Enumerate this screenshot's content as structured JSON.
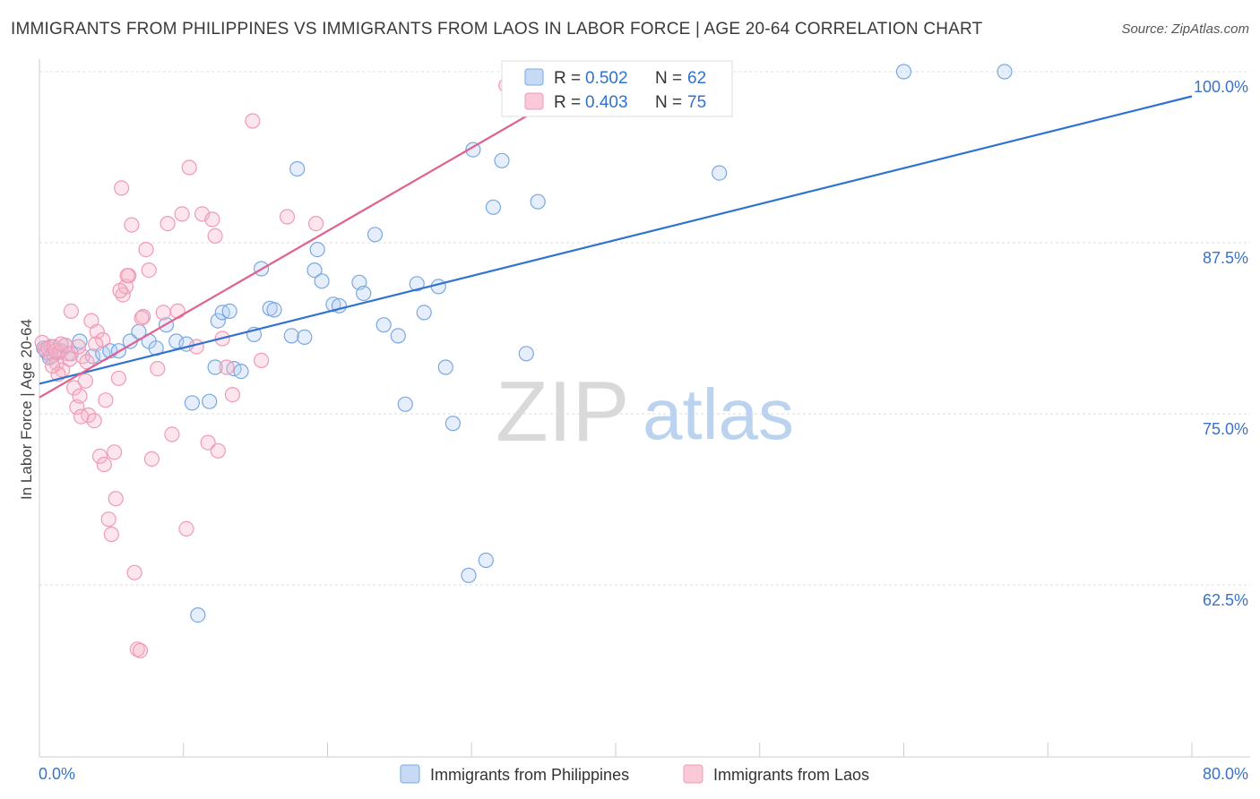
{
  "chart_data": {
    "type": "scatter",
    "title": "IMMIGRANTS FROM PHILIPPINES VS IMMIGRANTS FROM LAOS IN LABOR FORCE | AGE 20-64 CORRELATION CHART",
    "source": "Source: ZipAtlas.com",
    "ylabel": "In Labor Force | Age 20-64",
    "xlabel": "",
    "xlim": [
      0,
      80
    ],
    "ylim": [
      50,
      101.5
    ],
    "x_tick_labels": {
      "min": "0.0%",
      "max": "80.0%"
    },
    "y_ticks": [
      {
        "value": 100,
        "label": "100.0%"
      },
      {
        "value": 87.5,
        "label": "87.5%"
      },
      {
        "value": 75,
        "label": "75.0%"
      },
      {
        "value": 62.5,
        "label": "62.5%"
      }
    ],
    "grid": true,
    "legend_position": "bottom",
    "watermark": {
      "part1": "ZIP",
      "part2": "atlas"
    },
    "stats_box": [
      {
        "r_label": "R = ",
        "r_value": "0.502",
        "n_label": "N = ",
        "n_value": "62"
      },
      {
        "r_label": "R = ",
        "r_value": "0.403",
        "n_label": "N = ",
        "n_value": "75"
      }
    ],
    "series": [
      {
        "name": "Immigrants from Philippines",
        "color": "#7aa8e0",
        "line_color": "#2f72d0",
        "trend": {
          "x0": 0,
          "y0": 77.2,
          "x1": 80,
          "y1": 98.2
        },
        "points": [
          [
            0.3,
            79.8
          ],
          [
            0.5,
            79.5
          ],
          [
            0.8,
            79.9
          ],
          [
            1.0,
            79.3
          ],
          [
            1.5,
            79.6
          ],
          [
            1.8,
            80.0
          ],
          [
            2.2,
            79.4
          ],
          [
            2.8,
            80.3
          ],
          [
            3.7,
            79.2
          ],
          [
            4.4,
            79.4
          ],
          [
            4.9,
            79.6
          ],
          [
            5.5,
            79.6
          ],
          [
            6.3,
            80.3
          ],
          [
            6.9,
            81.0
          ],
          [
            7.6,
            80.3
          ],
          [
            8.1,
            79.8
          ],
          [
            8.8,
            81.5
          ],
          [
            9.5,
            80.3
          ],
          [
            10.2,
            80.1
          ],
          [
            10.6,
            75.8
          ],
          [
            11.0,
            60.3
          ],
          [
            11.8,
            75.9
          ],
          [
            12.2,
            78.4
          ],
          [
            12.4,
            81.8
          ],
          [
            12.7,
            82.4
          ],
          [
            13.2,
            82.5
          ],
          [
            13.5,
            78.3
          ],
          [
            14.0,
            78.1
          ],
          [
            14.9,
            80.8
          ],
          [
            15.4,
            85.6
          ],
          [
            16.0,
            82.7
          ],
          [
            16.3,
            82.6
          ],
          [
            17.5,
            80.7
          ],
          [
            17.9,
            92.9
          ],
          [
            18.4,
            80.6
          ],
          [
            19.1,
            85.5
          ],
          [
            19.3,
            87.0
          ],
          [
            19.6,
            84.7
          ],
          [
            20.4,
            83.0
          ],
          [
            20.8,
            82.9
          ],
          [
            22.2,
            84.6
          ],
          [
            22.5,
            83.8
          ],
          [
            23.3,
            88.1
          ],
          [
            23.9,
            81.5
          ],
          [
            24.9,
            80.7
          ],
          [
            25.4,
            75.7
          ],
          [
            26.2,
            84.5
          ],
          [
            26.7,
            82.4
          ],
          [
            27.7,
            84.3
          ],
          [
            28.2,
            78.4
          ],
          [
            28.7,
            74.3
          ],
          [
            29.8,
            63.2
          ],
          [
            30.1,
            94.3
          ],
          [
            31.0,
            64.3
          ],
          [
            31.5,
            90.1
          ],
          [
            32.1,
            93.5
          ],
          [
            33.8,
            79.4
          ],
          [
            34.6,
            90.5
          ],
          [
            47.2,
            92.6
          ],
          [
            60.0,
            100.0
          ],
          [
            67.0,
            100.0
          ],
          [
            0.7,
            79.1
          ]
        ]
      },
      {
        "name": "Immigrants from Laos",
        "color": "#f09ab5",
        "line_color": "#e0608f",
        "trend": {
          "x0": 0,
          "y0": 76.2,
          "x1": 38,
          "y1": 99.3
        },
        "points": [
          [
            0.2,
            80.2
          ],
          [
            0.4,
            79.7
          ],
          [
            0.6,
            79.8
          ],
          [
            0.8,
            79.2
          ],
          [
            1.0,
            79.9
          ],
          [
            1.2,
            78.7
          ],
          [
            1.4,
            79.5
          ],
          [
            1.6,
            78.2
          ],
          [
            1.8,
            80.0
          ],
          [
            2.0,
            79.4
          ],
          [
            2.2,
            82.5
          ],
          [
            2.4,
            76.9
          ],
          [
            2.6,
            75.5
          ],
          [
            2.8,
            76.3
          ],
          [
            3.0,
            79.2
          ],
          [
            3.2,
            77.4
          ],
          [
            3.4,
            74.9
          ],
          [
            3.6,
            81.8
          ],
          [
            3.8,
            74.5
          ],
          [
            4.0,
            81.0
          ],
          [
            4.2,
            71.9
          ],
          [
            4.4,
            80.4
          ],
          [
            4.6,
            76.0
          ],
          [
            4.8,
            67.3
          ],
          [
            5.0,
            66.2
          ],
          [
            5.2,
            72.2
          ],
          [
            5.3,
            68.8
          ],
          [
            5.5,
            77.6
          ],
          [
            5.7,
            91.5
          ],
          [
            5.8,
            83.7
          ],
          [
            6.0,
            84.3
          ],
          [
            6.2,
            85.1
          ],
          [
            6.4,
            88.8
          ],
          [
            6.6,
            63.4
          ],
          [
            6.8,
            57.8
          ],
          [
            7.0,
            57.7
          ],
          [
            7.2,
            82.1
          ],
          [
            7.4,
            87.0
          ],
          [
            7.6,
            85.5
          ],
          [
            7.8,
            71.7
          ],
          [
            8.2,
            78.3
          ],
          [
            8.6,
            82.4
          ],
          [
            8.9,
            88.9
          ],
          [
            9.2,
            73.5
          ],
          [
            9.6,
            82.5
          ],
          [
            9.9,
            89.6
          ],
          [
            10.2,
            66.6
          ],
          [
            10.4,
            93.0
          ],
          [
            10.9,
            79.9
          ],
          [
            11.3,
            89.6
          ],
          [
            11.7,
            72.9
          ],
          [
            12.0,
            89.2
          ],
          [
            12.2,
            88.0
          ],
          [
            12.4,
            72.3
          ],
          [
            12.7,
            80.5
          ],
          [
            13.0,
            78.4
          ],
          [
            13.4,
            76.4
          ],
          [
            14.8,
            96.4
          ],
          [
            15.4,
            78.9
          ],
          [
            17.2,
            89.4
          ],
          [
            19.2,
            88.9
          ],
          [
            32.4,
            99.0
          ],
          [
            1.1,
            79.6
          ],
          [
            1.5,
            80.1
          ],
          [
            2.1,
            79.0
          ],
          [
            2.7,
            79.9
          ],
          [
            3.3,
            78.8
          ],
          [
            4.5,
            71.3
          ],
          [
            5.6,
            84.0
          ],
          [
            6.1,
            85.1
          ],
          [
            7.1,
            82.0
          ],
          [
            2.9,
            74.8
          ],
          [
            3.9,
            80.1
          ],
          [
            1.3,
            77.9
          ],
          [
            0.9,
            78.5
          ]
        ]
      }
    ]
  }
}
